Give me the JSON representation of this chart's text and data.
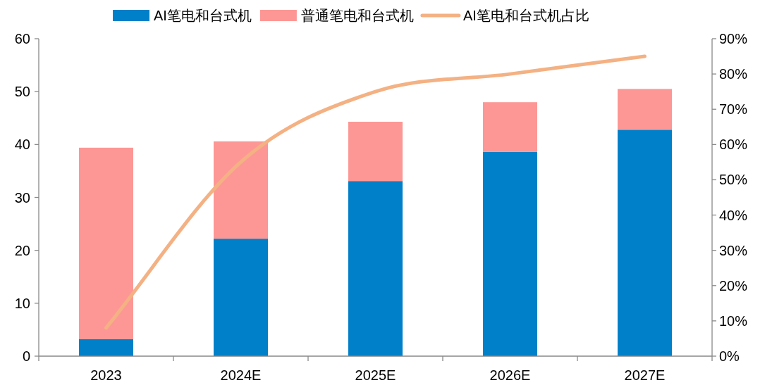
{
  "chart_data": {
    "type": "bar",
    "stacked": true,
    "categories": [
      "2023",
      "2024E",
      "2025E",
      "2026E",
      "2027E"
    ],
    "series": [
      {
        "name": "AI笔电和台式机",
        "color": "#0080c8",
        "values": [
          3.2,
          22.2,
          33.1,
          38.6,
          42.8
        ]
      },
      {
        "name": "普通笔电和台式机",
        "color": "#fd9795",
        "values": [
          36.2,
          18.4,
          11.2,
          9.4,
          7.7
        ]
      },
      {
        "name": "AI笔电和台式机占比",
        "type": "line",
        "axis": "y2",
        "color": "#f4b183",
        "values": [
          8,
          55,
          75,
          80,
          85
        ]
      }
    ],
    "ylim": [
      0,
      60
    ],
    "yticks": [
      0,
      10,
      20,
      30,
      40,
      50,
      60
    ],
    "y2lim": [
      0,
      90
    ],
    "y2ticks": [
      {
        "value": 0,
        "label": "0%"
      },
      {
        "value": 10,
        "label": "10%"
      },
      {
        "value": 20,
        "label": "20%"
      },
      {
        "value": 30,
        "label": "30%"
      },
      {
        "value": 40,
        "label": "40%"
      },
      {
        "value": 50,
        "label": "50%"
      },
      {
        "value": 60,
        "label": "60%"
      },
      {
        "value": 70,
        "label": "70%"
      },
      {
        "value": 80,
        "label": "80%"
      },
      {
        "value": 90,
        "label": "90%"
      }
    ],
    "grid": false,
    "legend": "top"
  }
}
